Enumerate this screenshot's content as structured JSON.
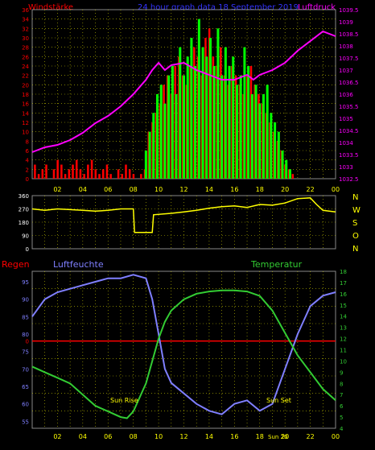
{
  "header": {
    "left_label": "Windstärke",
    "center_label": "24 hour graph data  18 September 2019",
    "right_label": "Luftdruck"
  },
  "wind_dir_labels": [
    "N",
    "W",
    "S",
    "O",
    "N"
  ],
  "bottom_labels": {
    "rain": "Regen",
    "humidity": "Luftfeuchte",
    "temperature": "Temperatur",
    "sunrise": "Sun Rise",
    "sunset": "Sun Set",
    "sunset_time_marker": "Sun 20"
  },
  "colors": {
    "wind": "#ff0000",
    "gust": "#00ff00",
    "pressure": "#ff00ff",
    "direction": "#ffff00",
    "humidity": "#7f7fff",
    "temperature": "#33cc33",
    "rain": "#ff0000",
    "axis_left": "#ff0000",
    "axis_right": "#ff00ff",
    "hour_labels": "#ffff00",
    "grid": "#c8c800"
  },
  "chart_data": [
    {
      "type": "bar",
      "title": "24 hour graph data  18 September 2019",
      "ylabel": "Windstärke",
      "ylim": [
        0,
        36
      ],
      "yticks": [
        0,
        2,
        4,
        6,
        8,
        10,
        12,
        14,
        16,
        18,
        20,
        22,
        24,
        26,
        28,
        30,
        32,
        34,
        36
      ],
      "xlim": [
        0,
        24
      ],
      "xticks": [
        "02",
        "04",
        "06",
        "08",
        "10",
        "12",
        "14",
        "16",
        "18",
        "20",
        "22",
        "00"
      ],
      "series": [
        {
          "name": "wind",
          "x": [
            0.2,
            0.5,
            0.8,
            1.1,
            1.4,
            1.7,
            2.0,
            2.3,
            2.6,
            2.9,
            3.2,
            3.5,
            3.8,
            4.1,
            4.4,
            4.7,
            5.0,
            5.3,
            5.6,
            5.9,
            6.2,
            6.5,
            6.8,
            7.1,
            7.4,
            7.7,
            8.0,
            8.3,
            8.6,
            8.9,
            9.2,
            9.5,
            9.8,
            10.1,
            10.4,
            10.7,
            11.0,
            11.3,
            11.6,
            11.9,
            12.2,
            12.5,
            12.8,
            13.1,
            13.4,
            13.7,
            14.0,
            14.3,
            14.6,
            14.9,
            15.2,
            15.5,
            15.8,
            16.1,
            16.4,
            16.7,
            17.0,
            17.3,
            17.6,
            17.9,
            18.2,
            18.5,
            18.8,
            19.1,
            19.4,
            19.7,
            20.0,
            20.3,
            20.6,
            20.9,
            21.2,
            21.5,
            21.8,
            22.1,
            22.4,
            22.7,
            23.0,
            23.3,
            23.6,
            23.9
          ],
          "values": [
            3,
            1,
            2,
            3,
            0,
            2,
            4,
            3,
            1,
            2,
            3,
            4,
            2,
            1,
            3,
            4,
            2,
            1,
            2,
            3,
            1,
            0,
            2,
            1,
            3,
            2,
            1,
            0,
            1,
            2,
            10,
            12,
            14,
            16,
            20,
            22,
            18,
            24,
            26,
            22,
            20,
            24,
            28,
            26,
            22,
            30,
            32,
            26,
            24,
            28,
            22,
            20,
            24,
            22,
            20,
            18,
            22,
            24,
            20,
            18,
            16,
            14,
            12,
            10,
            8,
            6,
            3,
            2,
            1,
            0,
            0,
            0,
            0,
            0,
            0,
            0,
            0,
            0,
            0,
            0
          ]
        },
        {
          "name": "gust",
          "x": [
            9.0,
            9.3,
            9.6,
            9.9,
            10.2,
            10.5,
            10.8,
            11.1,
            11.4,
            11.7,
            12.0,
            12.3,
            12.6,
            12.9,
            13.2,
            13.5,
            13.8,
            14.1,
            14.4,
            14.7,
            15.0,
            15.3,
            15.6,
            15.9,
            16.2,
            16.5,
            16.8,
            17.1,
            17.4,
            17.7,
            18.0,
            18.3,
            18.6,
            18.9,
            19.2,
            19.5,
            19.8,
            20.1,
            20.4
          ],
          "values": [
            6,
            10,
            14,
            18,
            20,
            16,
            22,
            24,
            18,
            28,
            22,
            26,
            30,
            24,
            34,
            28,
            26,
            30,
            24,
            32,
            22,
            28,
            24,
            26,
            20,
            22,
            28,
            24,
            18,
            20,
            16,
            18,
            20,
            14,
            12,
            10,
            6,
            4,
            2
          ]
        }
      ]
    },
    {
      "type": "line",
      "ylabel": "Luftdruck",
      "ylim": [
        1032.5,
        1029.5
      ],
      "yticks": [
        1032.5,
        1033,
        1033.5,
        1034,
        1034.5,
        1035,
        1035.5,
        1036,
        1036.5,
        1037,
        1037.5,
        1038,
        1038.5,
        1039,
        1039.5
      ],
      "series": [
        {
          "name": "pressure",
          "x": [
            0,
            1,
            2,
            3,
            4,
            5,
            6,
            7,
            8,
            9,
            9.5,
            10,
            10.5,
            11,
            12,
            13,
            14,
            15,
            16,
            17,
            17.5,
            18,
            19,
            20,
            21,
            22,
            23,
            24
          ],
          "values": [
            1033.6,
            1033.8,
            1033.9,
            1034.1,
            1034.4,
            1034.8,
            1035.1,
            1035.5,
            1036.0,
            1036.6,
            1037.0,
            1037.3,
            1037.0,
            1037.2,
            1037.3,
            1037.0,
            1036.8,
            1036.6,
            1036.6,
            1036.8,
            1036.6,
            1036.8,
            1037.0,
            1037.3,
            1037.8,
            1038.2,
            1038.6,
            1038.4
          ]
        }
      ]
    },
    {
      "type": "line",
      "ylim": [
        0,
        360
      ],
      "yticks": [
        0,
        90,
        180,
        270,
        360
      ],
      "series": [
        {
          "name": "direction",
          "x": [
            0,
            1,
            2,
            3,
            4,
            5,
            6,
            7,
            8,
            8.1,
            9.5,
            9.6,
            11,
            12,
            13,
            14,
            15,
            16,
            17,
            18,
            19,
            20,
            21,
            22,
            22.5,
            23,
            24
          ],
          "values": [
            270,
            260,
            270,
            265,
            260,
            255,
            260,
            270,
            270,
            110,
            110,
            230,
            240,
            250,
            260,
            275,
            285,
            290,
            280,
            300,
            295,
            310,
            340,
            345,
            300,
            260,
            250
          ]
        }
      ]
    },
    {
      "type": "line",
      "series": [
        {
          "name": "humidity",
          "ylim": [
            53,
            98
          ],
          "yticks": [
            55,
            60,
            65,
            70,
            75,
            80,
            85,
            90,
            95
          ],
          "x": [
            0,
            1,
            2,
            3,
            4,
            5,
            6,
            7,
            8,
            9,
            9.5,
            10,
            10.5,
            11,
            12,
            13,
            14,
            15,
            16,
            17,
            18,
            19,
            20,
            21,
            22,
            23,
            24
          ],
          "values": [
            85,
            90,
            92,
            93,
            94,
            95,
            96,
            96,
            97,
            96,
            90,
            80,
            70,
            66,
            63,
            60,
            58,
            57,
            60,
            61,
            58,
            60,
            70,
            80,
            88,
            91,
            92
          ]
        },
        {
          "name": "temperature",
          "ylim": [
            4,
            18
          ],
          "yticks": [
            4,
            5,
            6,
            7,
            8,
            9,
            10,
            11,
            12,
            13,
            14,
            15,
            16,
            17,
            18
          ],
          "x": [
            0,
            1,
            2,
            3,
            4,
            5,
            6,
            7,
            7.5,
            8,
            9,
            10,
            10.5,
            11,
            12,
            13,
            14,
            15,
            16,
            17,
            18,
            19,
            20,
            21,
            22,
            23,
            24
          ],
          "values": [
            9.5,
            9.0,
            8.5,
            8.0,
            7.0,
            6.0,
            5.5,
            5.0,
            4.9,
            5.5,
            8.0,
            12.0,
            13.5,
            14.5,
            15.5,
            16.0,
            16.2,
            16.3,
            16.3,
            16.2,
            15.8,
            14.5,
            12.5,
            10.5,
            9.0,
            7.5,
            6.5
          ]
        }
      ],
      "reference_line": {
        "name": "rain",
        "value": 0,
        "axis_value_humidity": 78
      }
    }
  ]
}
